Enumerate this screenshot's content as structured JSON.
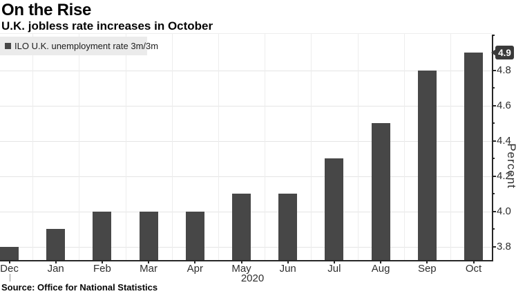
{
  "header": {
    "title": "On the Rise",
    "subtitle": "U.K. jobless rate increases in October"
  },
  "legend": {
    "label": "ILO U.K. unemployment rate 3m/3m",
    "marker_color": "#474747"
  },
  "source": {
    "text": "Source: Office for National Statistics"
  },
  "chart_data": {
    "type": "bar",
    "title": "On the Rise",
    "subtitle": "U.K. jobless rate increases in October",
    "legend_entries": [
      "ILO U.K. unemployment rate 3m/3m"
    ],
    "legend_position": "top-left",
    "categories": [
      "Dec",
      "Jan",
      "Feb",
      "Mar",
      "Apr",
      "May",
      "Jun",
      "Jul",
      "Aug",
      "Sep",
      "Oct"
    ],
    "year_label": "2020",
    "year_boundary_after_index": 0,
    "values": [
      3.8,
      3.9,
      4.0,
      4.0,
      4.0,
      4.1,
      4.1,
      4.3,
      4.5,
      4.8,
      4.9
    ],
    "xlabel": "",
    "ylabel": "Percent",
    "ylim": [
      3.72,
      5.01
    ],
    "yticks_labeled": [
      3.8,
      4.0,
      4.2,
      4.4,
      4.6,
      4.8
    ],
    "ytick_minor_step": 0.1,
    "ytick_minor_range": [
      3.8,
      5.0
    ],
    "axis_side": "right",
    "grid": true,
    "bar_color": "#474747",
    "last_value_badge": "4.9",
    "source": "Source: Office for National Statistics"
  }
}
